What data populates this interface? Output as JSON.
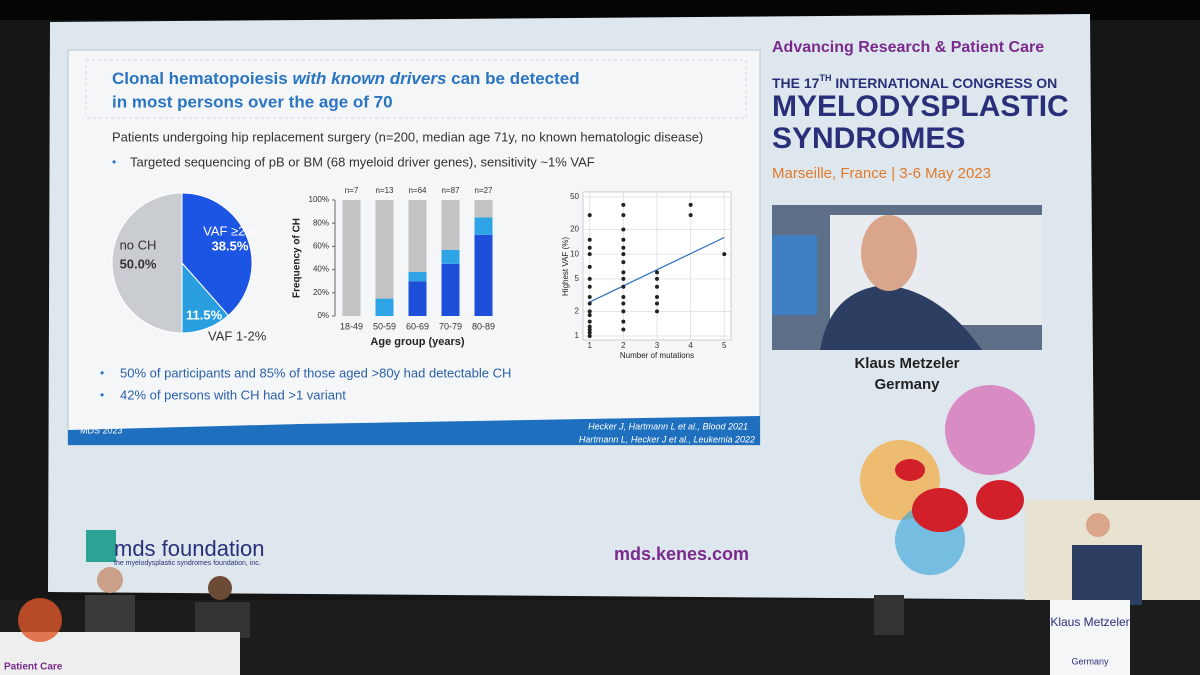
{
  "slide": {
    "title_a": "Clonal hematopoiesis ",
    "title_em": "with known drivers",
    "title_b": " can be detected",
    "title_line2": "in most persons over the age of 70",
    "subtitle": "Patients undergoing hip replacement surgery (n=200, median age 71y, no known hematologic disease)",
    "bullet1": "Targeted sequencing of pB or BM (68 myeloid driver genes), sensitivity ~1% VAF",
    "bullet2": "50% of participants and 85% of those aged >80y had detectable CH",
    "bullet3": "42% of persons with CH had >1 variant",
    "footer": "MDS 2023",
    "citation1": "Hecker J, Hartmann L et al., Blood 2021",
    "citation2": "Hartmann L, Hecker J et al., Leukemia 2022"
  },
  "pie": {
    "type": "pie",
    "labels": [
      "VAF ≥2%",
      "VAF 1-2%",
      "no CH"
    ],
    "values": [
      38.5,
      11.5,
      50.0
    ],
    "value_labels": [
      "38.5%",
      "11.5%",
      "50.0%"
    ],
    "colors": [
      "#1c55e3",
      "#2a9fe0",
      "#c9ccd0"
    ]
  },
  "bars": {
    "type": "bar",
    "categories": [
      "18-49",
      "50-59",
      "60-69",
      "70-79",
      "80-89"
    ],
    "n_labels": [
      "n=7",
      "n=13",
      "n=64",
      "n=87",
      "n=27"
    ],
    "ylabel": "Frequency of CH",
    "xlabel": "Age group (years)",
    "ylim": [
      0,
      100
    ],
    "yticks": [
      {
        "value": 0,
        "label": "0%"
      },
      {
        "value": 20,
        "label": "20%"
      },
      {
        "value": 40,
        "label": "40%"
      },
      {
        "value": 60,
        "label": "60%"
      },
      {
        "value": 80,
        "label": "80%"
      },
      {
        "value": 100,
        "label": "100%"
      }
    ],
    "series": [
      {
        "color": "#1d4fd8",
        "values": [
          0,
          0,
          30,
          45,
          70
        ]
      },
      {
        "color": "#2ea3e6",
        "values": [
          0,
          15,
          8,
          12,
          15
        ]
      },
      {
        "color": "#c3c3c3",
        "values": [
          100,
          85,
          62,
          43,
          15
        ]
      }
    ]
  },
  "scatter": {
    "type": "scatter",
    "xlabel": "Number of mutations",
    "ylabel": "Highest VAF (%)",
    "log_y": true,
    "xlim": [
      0.8,
      5.2
    ],
    "ylim": [
      1,
      50
    ],
    "xticks": [
      1,
      2,
      3,
      4,
      5
    ],
    "yticks": [
      1,
      2,
      5,
      10,
      20,
      50
    ],
    "color": "#222222",
    "x": [
      1,
      1,
      1,
      1,
      1,
      1,
      1,
      1,
      1,
      1,
      1,
      1,
      1,
      1,
      1,
      1,
      2,
      2,
      2,
      2,
      2,
      2,
      2,
      2,
      2,
      2,
      2,
      2,
      2,
      2,
      2,
      3,
      3,
      3,
      3,
      3,
      3,
      4,
      4,
      5
    ],
    "values": [
      1,
      1.1,
      1.2,
      1.3,
      1.5,
      1.8,
      2,
      2.5,
      3,
      4,
      5,
      7,
      10,
      12,
      15,
      30,
      1.2,
      1.5,
      2,
      2.5,
      3,
      4,
      5,
      6,
      8,
      10,
      12,
      15,
      20,
      30,
      40,
      2,
      2.5,
      3,
      4,
      5,
      6,
      30,
      40,
      10
    ],
    "trend_x": [
      1,
      5
    ],
    "trend_y": [
      2.6,
      16
    ],
    "trend_color": "#2a6fc0"
  },
  "banner": {
    "tagline": "Advancing Research & Patient Care",
    "congress_a": "THE 17",
    "congress_sup": "TH",
    "congress_b": " INTERNATIONAL CONGRESS ON",
    "name1": "MYELODYSPLASTIC",
    "name2": "SYNDROMES",
    "place": "Marseille, France | 3-6 May 2023"
  },
  "speaker": {
    "name": "Klaus Metzeler",
    "country": "Germany"
  },
  "bottom": {
    "logo": "mds foundation",
    "logo_sub": "the myelodysplastic syndromes foundation, inc.",
    "url": "mds.kenes.com"
  },
  "stage": {
    "left_banner": "Patient Care",
    "podium_name": "Klaus Metzeler",
    "podium_country": "Germany"
  }
}
